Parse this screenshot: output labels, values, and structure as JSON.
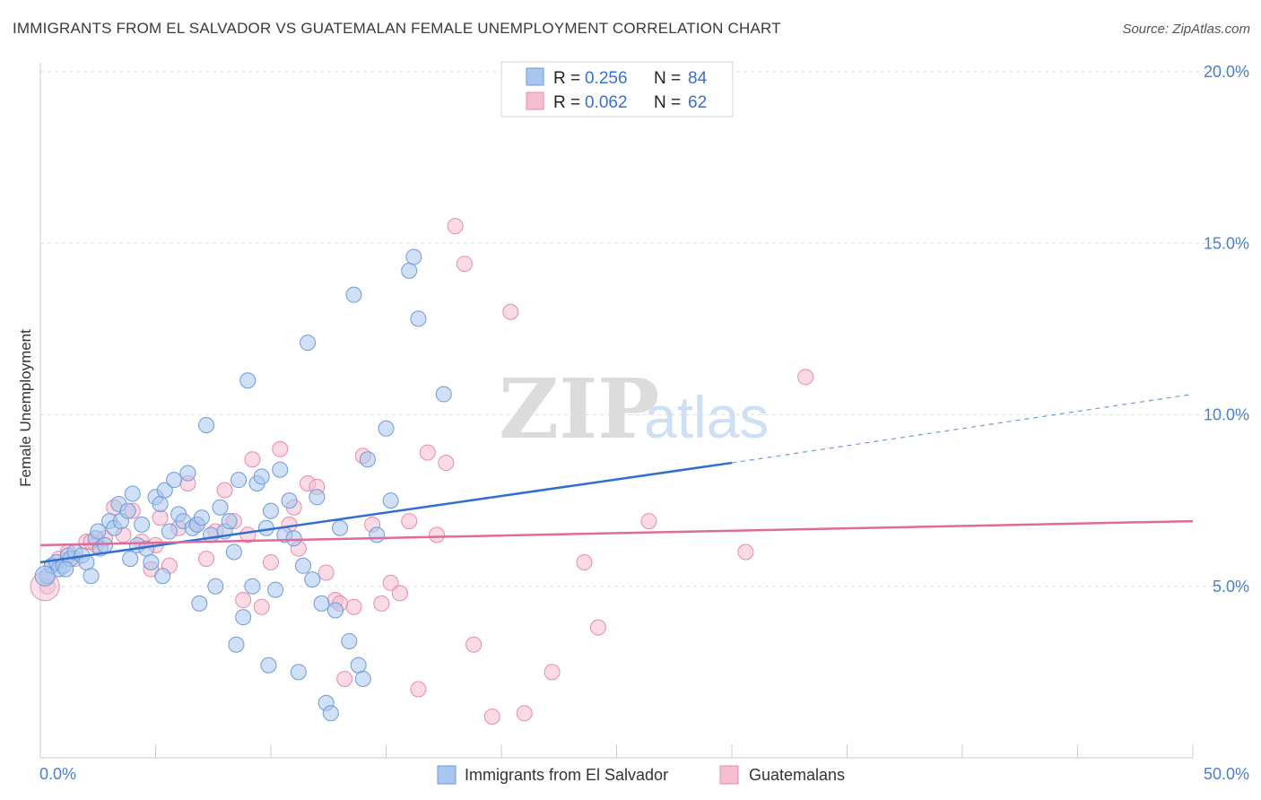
{
  "header": {
    "title": "IMMIGRANTS FROM EL SALVADOR VS GUATEMALAN FEMALE UNEMPLOYMENT CORRELATION CHART",
    "source": "Source: ZipAtlas.com"
  },
  "watermark": {
    "zip": "ZIP",
    "atlas": "atlas"
  },
  "colors": {
    "blue_fill": "#a9c6ef",
    "blue_stroke": "#6f9ad9",
    "blue_line": "#2e6fcf",
    "pink_fill": "#f5bdd0",
    "pink_stroke": "#e98aab",
    "pink_line": "#e06b96",
    "grid": "#dddddd",
    "tick_text": "#4a7fd0"
  },
  "legend": {
    "r_label": "R =",
    "n_label": "N =",
    "series": [
      {
        "r": "0.256",
        "n": "84"
      },
      {
        "r": "0.062",
        "n": "62"
      }
    ]
  },
  "bottom_legend": {
    "items": [
      "Immigrants from El Salvador",
      "Guatemalans"
    ]
  },
  "chart_data": {
    "type": "scatter",
    "title": "IMMIGRANTS FROM EL SALVADOR VS GUATEMALAN FEMALE UNEMPLOYMENT CORRELATION CHART",
    "xlabel": "",
    "ylabel": "Female Unemployment",
    "xlim": [
      0,
      50
    ],
    "ylim": [
      0,
      20
    ],
    "x_tick_labels": [
      "0.0%",
      "50.0%"
    ],
    "y_tick_labels": [
      "5.0%",
      "10.0%",
      "15.0%",
      "20.0%"
    ],
    "y_ticks": [
      5,
      10,
      15,
      20
    ],
    "x_minor_ticks": [
      5,
      10,
      15,
      20,
      25,
      30,
      35,
      40,
      45,
      50
    ],
    "series": [
      {
        "name": "Immigrants from El Salvador",
        "r": 0.256,
        "n": 84,
        "trend": {
          "x_start": 0,
          "y_start": 5.7,
          "x_solid_end": 30,
          "y_solid_end": 8.6,
          "x_dash_end": 50,
          "y_dash_end": 10.6
        },
        "points": [
          [
            0.3,
            5.3
          ],
          [
            0.5,
            5.6
          ],
          [
            0.7,
            5.7
          ],
          [
            0.8,
            5.5
          ],
          [
            1.0,
            5.6
          ],
          [
            1.2,
            5.9
          ],
          [
            1.3,
            5.8
          ],
          [
            1.5,
            6.0
          ],
          [
            1.8,
            5.9
          ],
          [
            2.0,
            5.7
          ],
          [
            2.2,
            5.3
          ],
          [
            2.4,
            6.4
          ],
          [
            2.6,
            6.1
          ],
          [
            2.8,
            6.2
          ],
          [
            3.0,
            6.9
          ],
          [
            3.2,
            6.7
          ],
          [
            3.4,
            7.4
          ],
          [
            3.5,
            6.9
          ],
          [
            3.8,
            7.2
          ],
          [
            4.0,
            7.7
          ],
          [
            4.2,
            6.2
          ],
          [
            4.4,
            6.8
          ],
          [
            4.6,
            6.1
          ],
          [
            4.8,
            5.7
          ],
          [
            5.0,
            7.6
          ],
          [
            5.2,
            7.4
          ],
          [
            5.4,
            7.8
          ],
          [
            5.6,
            6.6
          ],
          [
            5.8,
            8.1
          ],
          [
            6.0,
            7.1
          ],
          [
            6.2,
            6.9
          ],
          [
            6.4,
            8.3
          ],
          [
            6.6,
            6.7
          ],
          [
            6.8,
            6.8
          ],
          [
            7.0,
            7.0
          ],
          [
            7.2,
            9.7
          ],
          [
            7.4,
            6.5
          ],
          [
            7.6,
            5.0
          ],
          [
            7.8,
            7.3
          ],
          [
            8.0,
            6.6
          ],
          [
            8.2,
            6.9
          ],
          [
            8.4,
            6.0
          ],
          [
            8.6,
            8.1
          ],
          [
            8.8,
            4.1
          ],
          [
            9.0,
            11.0
          ],
          [
            9.2,
            5.0
          ],
          [
            9.4,
            8.0
          ],
          [
            9.6,
            8.2
          ],
          [
            9.8,
            6.7
          ],
          [
            10.0,
            7.2
          ],
          [
            10.2,
            4.9
          ],
          [
            10.4,
            8.4
          ],
          [
            10.6,
            6.5
          ],
          [
            10.8,
            7.5
          ],
          [
            11.0,
            6.4
          ],
          [
            11.2,
            2.5
          ],
          [
            11.4,
            5.6
          ],
          [
            11.6,
            12.1
          ],
          [
            11.8,
            5.2
          ],
          [
            12.0,
            7.6
          ],
          [
            12.2,
            4.5
          ],
          [
            12.4,
            1.6
          ],
          [
            12.6,
            1.3
          ],
          [
            12.8,
            4.3
          ],
          [
            13.0,
            6.7
          ],
          [
            13.4,
            3.4
          ],
          [
            13.6,
            13.5
          ],
          [
            13.8,
            2.7
          ],
          [
            14.0,
            2.3
          ],
          [
            14.2,
            8.7
          ],
          [
            14.6,
            6.5
          ],
          [
            15.0,
            9.6
          ],
          [
            15.2,
            7.5
          ],
          [
            16.0,
            14.2
          ],
          [
            16.2,
            14.6
          ],
          [
            16.4,
            12.8
          ],
          [
            17.5,
            10.6
          ],
          [
            1.1,
            5.5
          ],
          [
            3.9,
            5.8
          ],
          [
            8.5,
            3.3
          ],
          [
            9.9,
            2.7
          ],
          [
            6.9,
            4.5
          ],
          [
            5.3,
            5.3
          ],
          [
            2.5,
            6.6
          ]
        ]
      },
      {
        "name": "Guatemalans",
        "r": 0.062,
        "n": 62,
        "trend": {
          "x_start": 0,
          "y_start": 6.2,
          "x_end": 50,
          "y_end": 6.9
        },
        "points": [
          [
            0.3,
            5.0
          ],
          [
            0.5,
            5.6
          ],
          [
            0.8,
            5.8
          ],
          [
            1.2,
            6.0
          ],
          [
            1.5,
            5.8
          ],
          [
            2.0,
            6.3
          ],
          [
            2.4,
            6.2
          ],
          [
            2.8,
            6.4
          ],
          [
            3.2,
            7.3
          ],
          [
            3.6,
            6.5
          ],
          [
            4.0,
            7.2
          ],
          [
            4.4,
            6.3
          ],
          [
            4.8,
            5.5
          ],
          [
            5.2,
            7.0
          ],
          [
            5.6,
            5.6
          ],
          [
            6.0,
            6.7
          ],
          [
            6.4,
            8.0
          ],
          [
            6.8,
            6.8
          ],
          [
            7.2,
            5.8
          ],
          [
            7.6,
            6.6
          ],
          [
            8.0,
            7.8
          ],
          [
            8.4,
            6.9
          ],
          [
            8.8,
            4.6
          ],
          [
            9.2,
            8.7
          ],
          [
            9.6,
            4.4
          ],
          [
            10.0,
            5.7
          ],
          [
            10.4,
            9.0
          ],
          [
            10.8,
            6.8
          ],
          [
            11.2,
            6.1
          ],
          [
            11.6,
            8.0
          ],
          [
            12.0,
            7.9
          ],
          [
            12.4,
            5.4
          ],
          [
            12.8,
            4.6
          ],
          [
            13.2,
            2.3
          ],
          [
            13.6,
            4.4
          ],
          [
            14.0,
            8.8
          ],
          [
            14.4,
            6.8
          ],
          [
            14.8,
            4.5
          ],
          [
            15.2,
            5.1
          ],
          [
            15.6,
            4.8
          ],
          [
            16.0,
            6.9
          ],
          [
            16.4,
            2.0
          ],
          [
            16.8,
            8.9
          ],
          [
            17.2,
            6.5
          ],
          [
            17.6,
            8.6
          ],
          [
            18.0,
            15.5
          ],
          [
            18.4,
            14.4
          ],
          [
            18.8,
            3.3
          ],
          [
            19.6,
            1.2
          ],
          [
            20.4,
            13.0
          ],
          [
            21.0,
            1.3
          ],
          [
            22.2,
            2.5
          ],
          [
            23.6,
            5.7
          ],
          [
            24.2,
            3.8
          ],
          [
            26.4,
            6.9
          ],
          [
            30.6,
            6.0
          ],
          [
            33.2,
            11.1
          ],
          [
            13.0,
            4.5
          ],
          [
            9.0,
            6.5
          ],
          [
            5.0,
            6.2
          ],
          [
            2.2,
            6.3
          ],
          [
            11.0,
            7.3
          ]
        ]
      }
    ]
  }
}
